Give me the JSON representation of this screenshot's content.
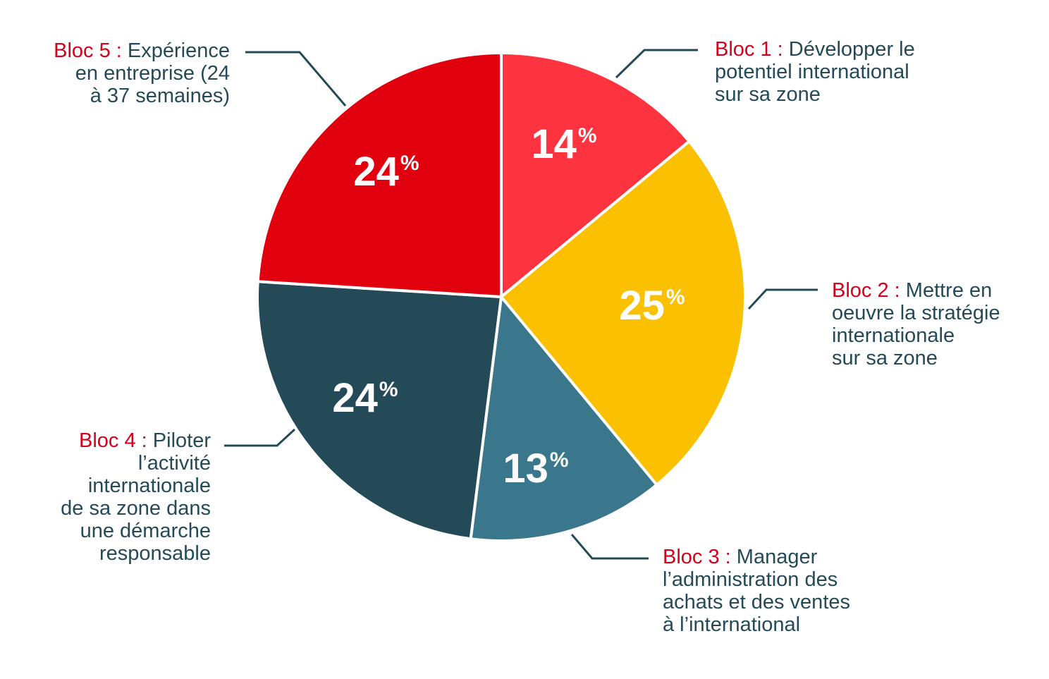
{
  "chart_data": {
    "type": "pie",
    "title": "",
    "unit": "%",
    "colors": [
      "#fd3340",
      "#fbc000",
      "#3a778c",
      "#244a58",
      "#e0000e"
    ],
    "slices": [
      {
        "bloc": "Bloc 1 :",
        "text": "Développer le potentiel international sur sa zone",
        "lines": [
          "Développer le",
          "potentiel international",
          "sur sa zone"
        ],
        "value": 14,
        "value_label": "14",
        "pct_label": "%"
      },
      {
        "bloc": "Bloc 2 :",
        "text": "Mettre en oeuvre la stratégie internationale sur sa zone",
        "lines": [
          "Mettre en",
          "oeuvre la stratégie",
          "internationale",
          "sur sa zone"
        ],
        "value": 25,
        "value_label": "25",
        "pct_label": "%"
      },
      {
        "bloc": "Bloc 3 :",
        "text": "Manager l’administration des achats et des ventes à l’international",
        "lines": [
          "Manager",
          "l’administration des",
          "achats et des ventes",
          "à l’international"
        ],
        "value": 13,
        "value_label": "13",
        "pct_label": "%"
      },
      {
        "bloc": "Bloc 4 :",
        "text": "Piloter l’activité internationale de sa zone dans une démarche responsable",
        "lines": [
          "Piloter",
          "l’activité",
          "internationale",
          "de sa zone dans",
          "une démarche",
          "responsable"
        ],
        "value": 24,
        "value_label": "24",
        "pct_label": "%"
      },
      {
        "bloc": "Bloc 5 :",
        "text": "Expérience en entreprise (24 à 37 semaines)",
        "lines": [
          "Expérience",
          "en entreprise (24",
          "à 37 semaines)"
        ],
        "value": 24,
        "value_label": "24",
        "pct_label": "%"
      }
    ]
  }
}
